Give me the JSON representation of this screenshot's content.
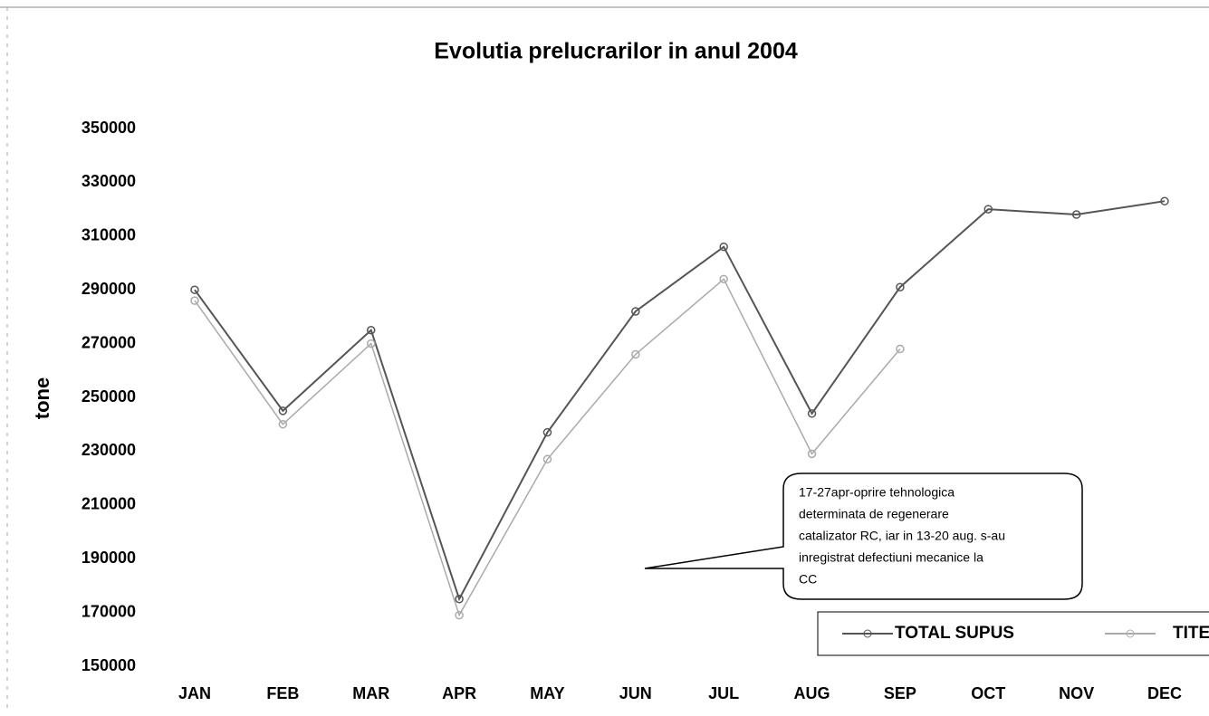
{
  "chart_data": {
    "type": "line",
    "title": "Evolutia prelucrarilor in anul 2004",
    "y_label": "tone",
    "categories": [
      "JAN",
      "FEB",
      "MAR",
      "APR",
      "MAY",
      "JUN",
      "JUL",
      "AUG",
      "SEP",
      "OCT",
      "NOV",
      "DEC"
    ],
    "series": [
      {
        "name": "TOTAL SUPUS",
        "color": "#555555",
        "values": [
          290000,
          245000,
          275000,
          175000,
          237000,
          282000,
          306000,
          244000,
          291000,
          320000,
          318000,
          323000
        ]
      },
      {
        "name": "TITEI",
        "color": "#aaaaaa",
        "values": [
          286000,
          240000,
          270000,
          169000,
          227000,
          266000,
          294000,
          229000,
          268000,
          null,
          null,
          null
        ]
      }
    ],
    "ylim": [
      150000,
      350000
    ],
    "yticks": [
      150000,
      170000,
      190000,
      210000,
      230000,
      250000,
      270000,
      290000,
      310000,
      330000,
      350000
    ],
    "annotation": [
      "17-27apr-oprire tehnologica",
      "determinata de regenerare",
      "catalizator RC, iar in 13-20 aug. s-au",
      "inregistrat defectiuni mecanice la",
      "CC"
    ],
    "legend": "bottom-right"
  }
}
